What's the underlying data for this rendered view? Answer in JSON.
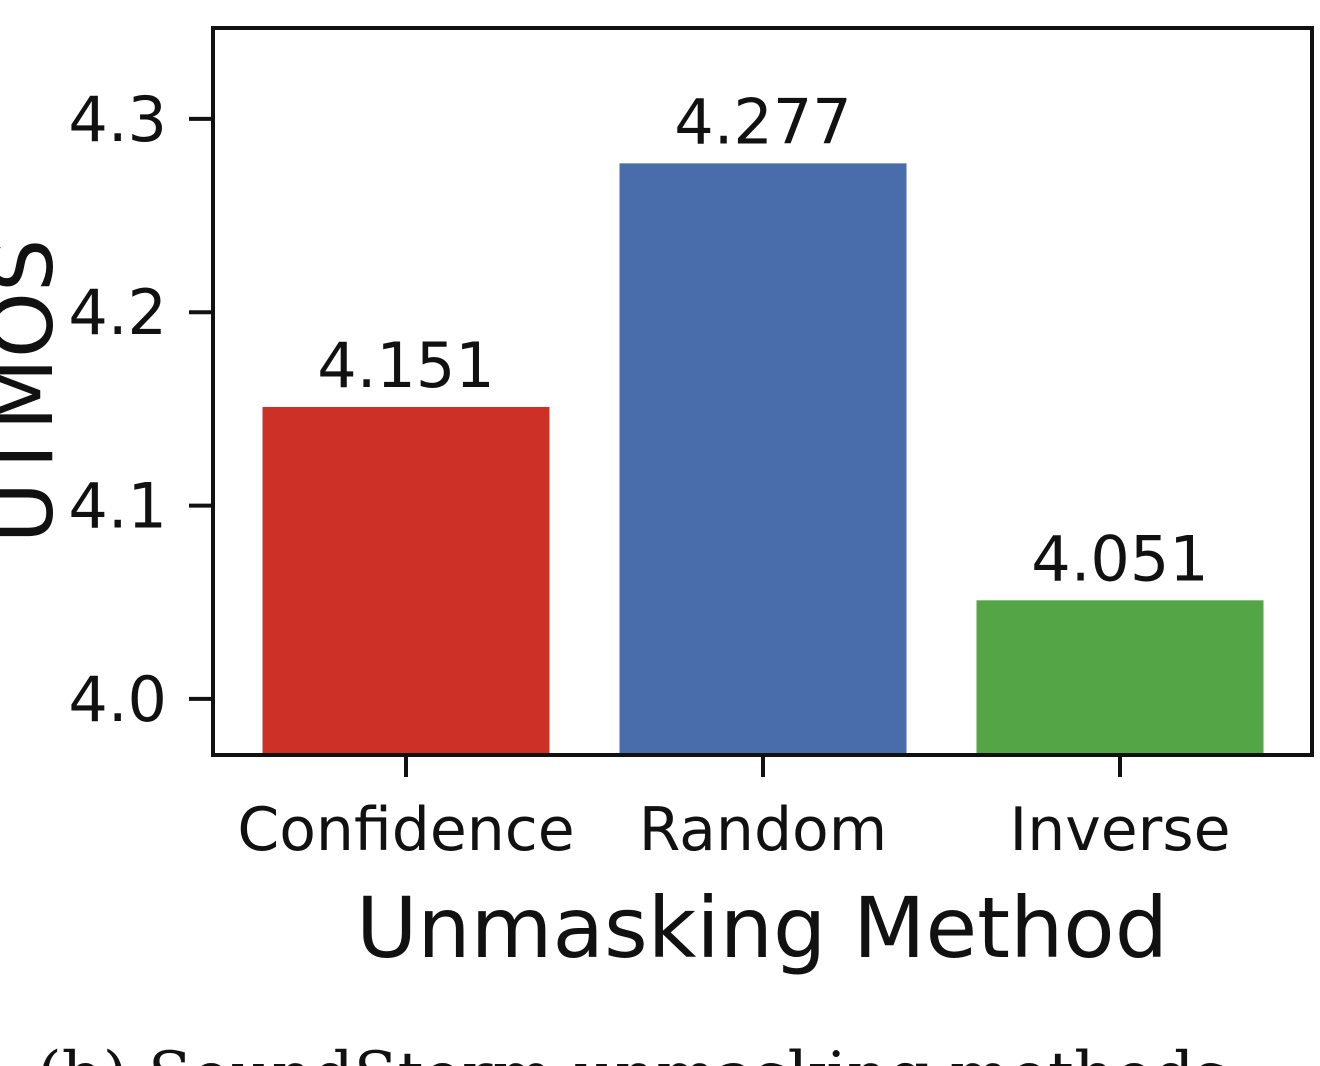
{
  "chart_data": {
    "type": "bar",
    "categories": [
      "Confidence",
      "Random",
      "Inverse"
    ],
    "values": [
      4.151,
      4.277,
      4.051
    ],
    "data_labels": [
      "4.151",
      "4.277",
      "4.051"
    ],
    "colors": [
      "#cc3026",
      "#496dab",
      "#53a546"
    ],
    "xlabel": "Unmasking Method",
    "ylabel": "UTMOS",
    "ylim": [
      3.971,
      4.347
    ],
    "yticks": [
      {
        "value": 4.0,
        "label": "4.0"
      },
      {
        "value": 4.1,
        "label": "4.1"
      },
      {
        "value": 4.2,
        "label": "4.2"
      },
      {
        "value": 4.3,
        "label": "4.3"
      }
    ],
    "grid": false,
    "legend": "none"
  },
  "caption": "(b) SoundStorm unmasking methods"
}
